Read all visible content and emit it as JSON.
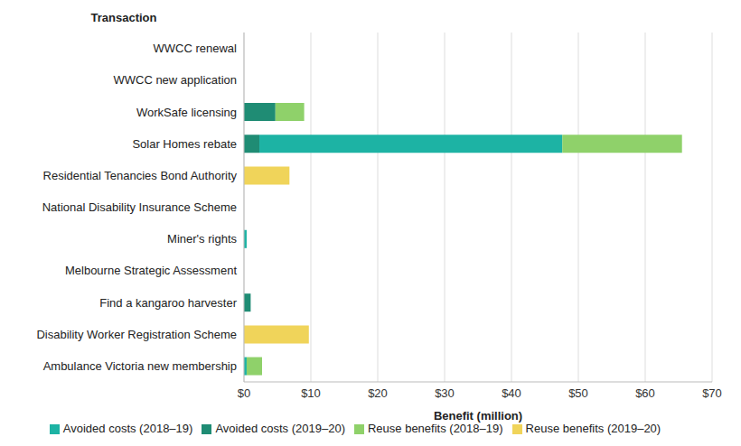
{
  "chart_data": {
    "type": "bar",
    "orientation": "horizontal",
    "stacked": true,
    "grid": true,
    "legend": "bottom",
    "ylabel": "Transaction",
    "xlabel": "Benefit (million)",
    "categories": [
      "WWCC renewal",
      "WWCC new application",
      "WorkSafe licensing",
      "Solar Homes rebate",
      "Residential Tenancies Bond Authority",
      "National Disability Insurance Scheme",
      "Miner's rights",
      "Melbourne Strategic Assessment",
      "Find a kangaroo harvester",
      "Disability Worker Registration Scheme",
      "Ambulance Victoria new membership"
    ],
    "series": [
      {
        "name": "Avoided costs (2019–20)",
        "color": "#1f8c74",
        "values": [
          0,
          0,
          4.7,
          2.3,
          0,
          0,
          0,
          0,
          1.0,
          0,
          0
        ]
      },
      {
        "name": "Avoided costs (2018–19)",
        "color": "#1db3a4",
        "values": [
          0,
          0,
          0,
          45.3,
          0,
          0,
          0.4,
          0,
          0,
          0,
          0.4
        ]
      },
      {
        "name": "Reuse benefits (2018–19)",
        "color": "#8fd16a",
        "values": [
          0,
          0,
          4.3,
          17.9,
          0,
          0,
          0,
          0,
          0,
          0,
          2.3
        ]
      },
      {
        "name": "Reuse benefits (2019–20)",
        "color": "#f0d45a",
        "values": [
          0,
          0,
          0,
          0,
          6.8,
          0,
          0,
          0,
          0,
          9.7,
          0
        ]
      }
    ],
    "xlim": [
      0,
      70
    ],
    "xticks": [
      {
        "value": 0,
        "label": "$0"
      },
      {
        "value": 10,
        "label": "$10"
      },
      {
        "value": 20,
        "label": "$20"
      },
      {
        "value": 30,
        "label": "$30"
      },
      {
        "value": 40,
        "label": "$40"
      },
      {
        "value": 50,
        "label": "$50"
      },
      {
        "value": 60,
        "label": "$60"
      },
      {
        "value": 70,
        "label": "$70"
      }
    ]
  }
}
